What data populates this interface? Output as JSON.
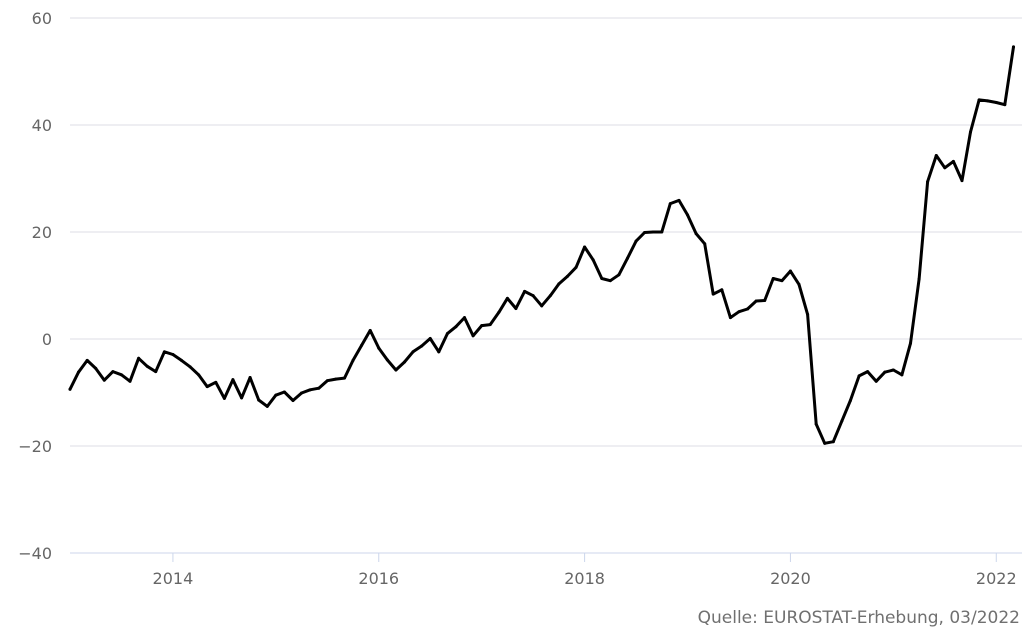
{
  "source": "Quelle: EUROSTAT-Erhebung, 03/2022",
  "chart_data": {
    "type": "line",
    "title": "",
    "xlabel": "",
    "ylabel": "",
    "xlim": [
      2013.0,
      2022.25
    ],
    "ylim": [
      -40,
      60
    ],
    "yticks": [
      -40,
      -20,
      0,
      20,
      40,
      60
    ],
    "yticklabels": [
      "−40",
      "−20",
      "0",
      "20",
      "40",
      "60"
    ],
    "xticks": [
      2014,
      2016,
      2018,
      2020,
      2022
    ],
    "xticklabels": [
      "2014",
      "2016",
      "2018",
      "2020",
      "2022"
    ],
    "grid": "horizontal",
    "legend": "none",
    "series": [
      {
        "color": "#000000",
        "x": [
          2013.0,
          2013.083,
          2013.167,
          2013.25,
          2013.333,
          2013.417,
          2013.5,
          2013.583,
          2013.667,
          2013.75,
          2013.833,
          2013.917,
          2014.0,
          2014.083,
          2014.167,
          2014.25,
          2014.333,
          2014.417,
          2014.5,
          2014.583,
          2014.667,
          2014.75,
          2014.833,
          2014.917,
          2015.0,
          2015.083,
          2015.167,
          2015.25,
          2015.333,
          2015.417,
          2015.5,
          2015.583,
          2015.667,
          2015.75,
          2015.833,
          2015.917,
          2016.0,
          2016.083,
          2016.167,
          2016.25,
          2016.333,
          2016.417,
          2016.5,
          2016.583,
          2016.667,
          2016.75,
          2016.833,
          2016.917,
          2017.0,
          2017.083,
          2017.167,
          2017.25,
          2017.333,
          2017.417,
          2017.5,
          2017.583,
          2017.667,
          2017.75,
          2017.833,
          2017.917,
          2018.0,
          2018.083,
          2018.167,
          2018.25,
          2018.333,
          2018.417,
          2018.5,
          2018.583,
          2018.667,
          2018.75,
          2018.833,
          2018.917,
          2019.0,
          2019.083,
          2019.167,
          2019.25,
          2019.333,
          2019.417,
          2019.5,
          2019.583,
          2019.667,
          2019.75,
          2019.833,
          2019.917,
          2020.0,
          2020.083,
          2020.167,
          2020.25,
          2020.333,
          2020.417,
          2020.5,
          2020.583,
          2020.667,
          2020.75,
          2020.833,
          2020.917,
          2021.0,
          2021.083,
          2021.167,
          2021.25,
          2021.333,
          2021.417,
          2021.5,
          2021.583,
          2021.667,
          2021.75,
          2021.833,
          2021.917,
          2022.0,
          2022.083,
          2022.167
        ],
        "y": [
          -9.4,
          -6.2,
          -4.0,
          -5.5,
          -7.7,
          -6.1,
          -6.7,
          -7.9,
          -3.6,
          -5.1,
          -6.1,
          -2.4,
          -2.9,
          -4.0,
          -5.2,
          -6.7,
          -8.9,
          -8.1,
          -11.1,
          -7.6,
          -11.0,
          -7.2,
          -11.4,
          -12.6,
          -10.5,
          -9.9,
          -11.5,
          -10.1,
          -9.5,
          -9.2,
          -7.8,
          -7.5,
          -7.3,
          -4.0,
          -1.2,
          1.6,
          -1.7,
          -3.9,
          -5.8,
          -4.3,
          -2.4,
          -1.3,
          0.1,
          -2.4,
          1.0,
          2.3,
          4.0,
          0.6,
          2.5,
          2.7,
          5.0,
          7.6,
          5.7,
          8.9,
          8.1,
          6.2,
          8.1,
          10.3,
          11.7,
          13.4,
          17.2,
          14.8,
          11.3,
          10.9,
          12.0,
          15.1,
          18.3,
          19.9,
          20.0,
          20.0,
          25.3,
          25.9,
          23.2,
          19.7,
          17.8,
          8.4,
          9.2,
          4.0,
          5.1,
          5.6,
          7.1,
          7.2,
          11.3,
          10.9,
          12.7,
          10.2,
          4.6,
          -15.9,
          -19.5,
          -19.2,
          -15.3,
          -11.5,
          -6.9,
          -6.1,
          -7.9,
          -6.2,
          -5.8,
          -6.7,
          -0.8,
          11.2,
          29.4,
          34.3,
          32.0,
          33.2,
          29.6,
          38.7,
          44.7,
          44.5,
          44.2,
          43.8,
          54.6
        ]
      }
    ]
  }
}
